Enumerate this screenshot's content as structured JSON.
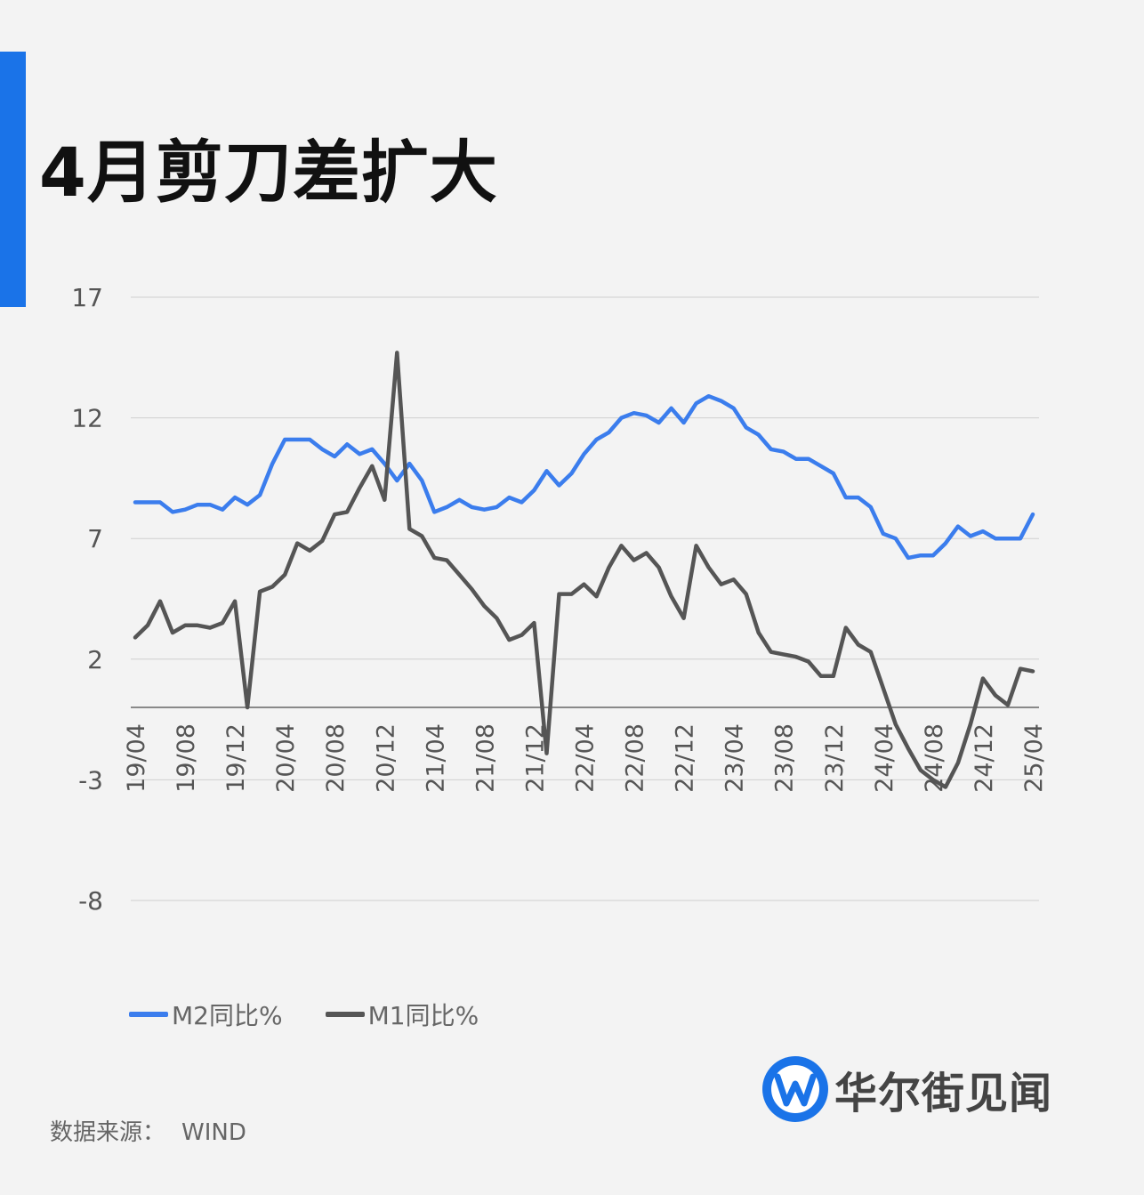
{
  "title": "4月剪刀差扩大",
  "accent_color": "#1a73e8",
  "source": {
    "label": "数据来源：",
    "value": "WIND"
  },
  "logo": {
    "text": "华尔街见闻",
    "icon": "w-logo-icon"
  },
  "chart_data": {
    "type": "line",
    "y_ticks": [
      "17",
      "12",
      "7",
      "2",
      "-3",
      "-8"
    ],
    "ylim": [
      -8,
      17
    ],
    "grid": true,
    "legend_position": "bottom-left",
    "x_ticks": [
      "19/04",
      "19/08",
      "19/12",
      "20/04",
      "20/08",
      "20/12",
      "21/04",
      "21/08",
      "21/12",
      "22/04",
      "22/08",
      "22/12",
      "23/04",
      "23/08",
      "23/12",
      "24/04",
      "24/08",
      "24/12",
      "25/04"
    ],
    "series": [
      {
        "name": "M2同比%",
        "color": "#3b7ded",
        "values": [
          8.5,
          8.5,
          8.5,
          8.1,
          8.2,
          8.4,
          8.4,
          8.2,
          8.7,
          8.4,
          8.8,
          10.1,
          11.1,
          11.1,
          11.1,
          10.7,
          10.4,
          10.9,
          10.5,
          10.7,
          10.1,
          9.4,
          10.1,
          9.4,
          8.1,
          8.3,
          8.6,
          8.3,
          8.2,
          8.3,
          8.7,
          8.5,
          9.0,
          9.8,
          9.2,
          9.7,
          10.5,
          11.1,
          11.4,
          12.0,
          12.2,
          12.1,
          11.8,
          12.4,
          11.8,
          12.6,
          12.9,
          12.7,
          12.4,
          11.6,
          11.3,
          10.7,
          10.6,
          10.3,
          10.3,
          10.0,
          9.7,
          8.7,
          8.7,
          8.3,
          7.2,
          7.0,
          6.2,
          6.3,
          6.3,
          6.8,
          7.5,
          7.1,
          7.3,
          7.0,
          7.0,
          7.0,
          8.0
        ]
      },
      {
        "name": "M1同比%",
        "color": "#555555",
        "values": [
          2.9,
          3.4,
          4.4,
          3.1,
          3.4,
          3.4,
          3.3,
          3.5,
          4.4,
          0.0,
          4.8,
          5.0,
          5.5,
          6.8,
          6.5,
          6.9,
          8.0,
          8.1,
          9.1,
          10.0,
          8.6,
          14.7,
          7.4,
          7.1,
          6.2,
          6.1,
          5.5,
          4.9,
          4.2,
          3.7,
          2.8,
          3.0,
          3.5,
          -1.9,
          4.7,
          4.7,
          5.1,
          4.6,
          5.8,
          6.7,
          6.1,
          6.4,
          5.8,
          4.6,
          3.7,
          6.7,
          5.8,
          5.1,
          5.3,
          4.7,
          3.1,
          2.3,
          2.2,
          2.1,
          1.9,
          1.3,
          1.3,
          3.3,
          2.6,
          2.3,
          0.8,
          -0.7,
          -1.7,
          -2.6,
          -3.0,
          -3.3,
          -2.3,
          -0.7,
          1.2,
          0.5,
          0.1,
          1.6,
          1.5
        ]
      }
    ]
  }
}
